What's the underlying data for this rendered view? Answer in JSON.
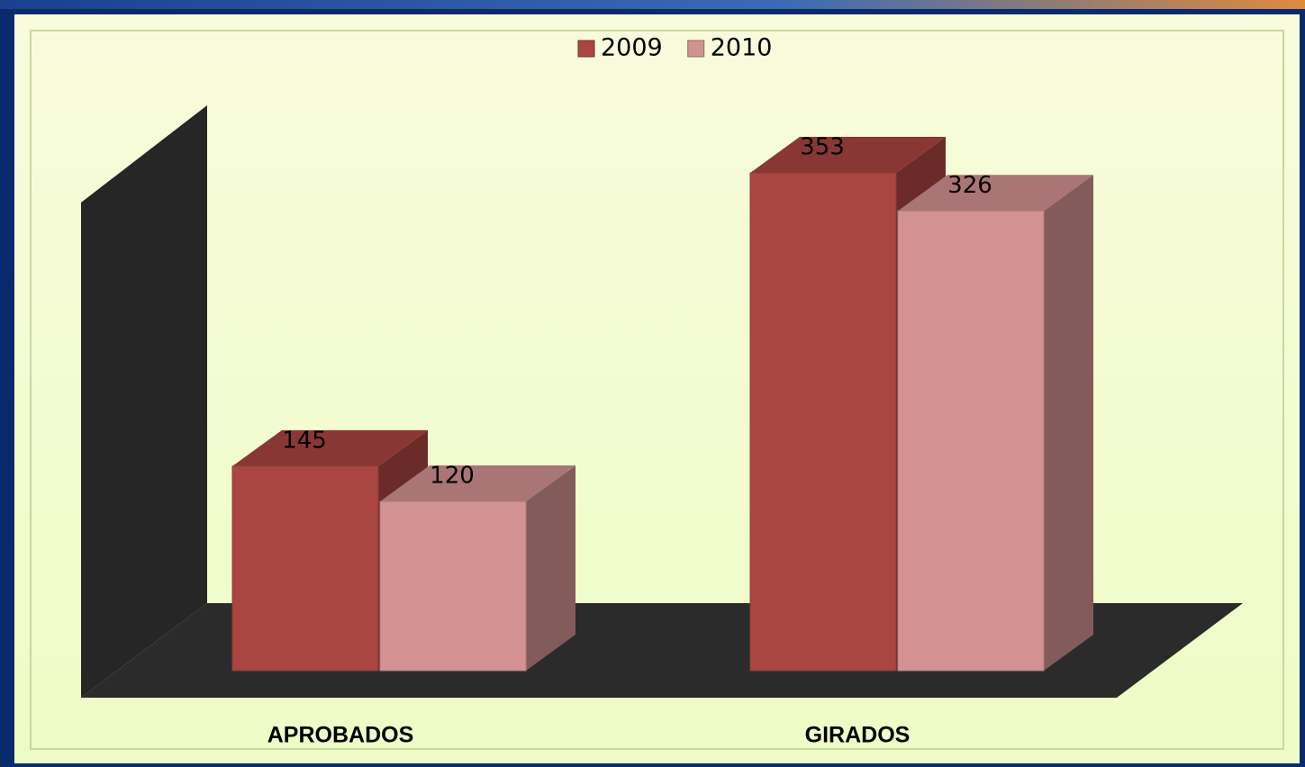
{
  "chart_data": {
    "type": "bar3d",
    "categories": [
      "APROBADOS",
      "GIRADOS"
    ],
    "series": [
      {
        "name": "2009",
        "color": "#ab4542",
        "values": [
          145,
          353
        ]
      },
      {
        "name": "2010",
        "color": "#d39292",
        "values": [
          120,
          326
        ]
      }
    ],
    "legend": "top"
  }
}
